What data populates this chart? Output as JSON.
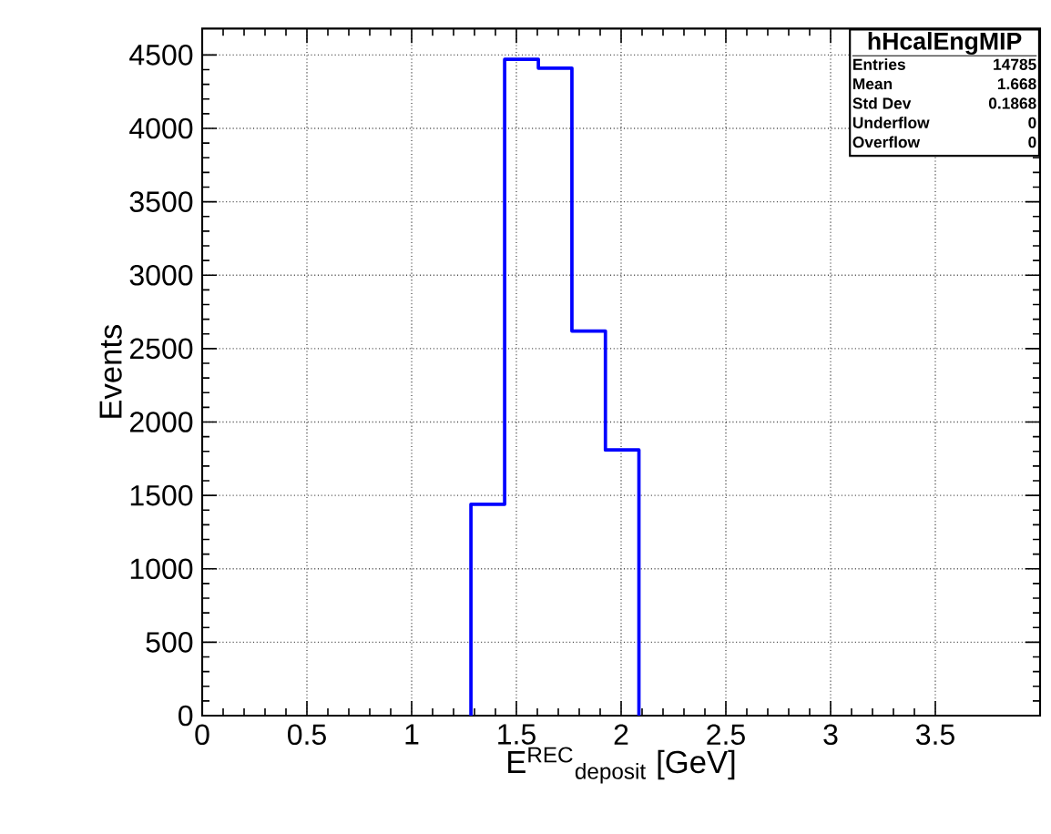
{
  "chart_data": {
    "type": "histogram",
    "xlabel": "E$^{REC}$$_{deposit}$ [GeV]",
    "ylabel": "Events",
    "bins": [
      1.283,
      1.444,
      1.605,
      1.765,
      1.925,
      2.085
    ],
    "values": [
      1440,
      4470,
      4410,
      2620,
      1810
    ],
    "color": "#0000ff",
    "xlim": [
      0,
      4
    ],
    "ylim": [
      0,
      4680
    ],
    "xticks": [
      0,
      0.5,
      1,
      1.5,
      2,
      2.5,
      3,
      3.5
    ],
    "yticks": [
      0,
      500,
      1000,
      1500,
      2000,
      2500,
      3000,
      3500,
      4000,
      4500
    ],
    "grid": true,
    "annotations": [
      "hHcalEngMIP",
      "Entries",
      "14785",
      "Mean",
      "1.668",
      "Std Dev",
      "0.1868",
      "Underflow",
      "0",
      "Overflow",
      "0"
    ]
  }
}
